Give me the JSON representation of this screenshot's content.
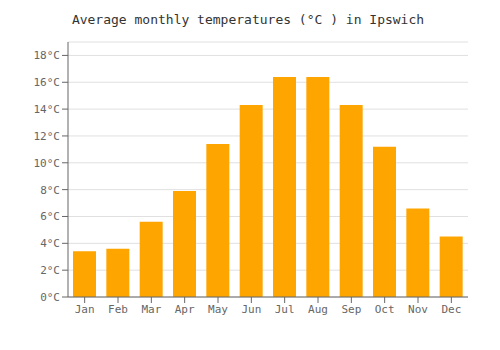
{
  "chart_data": {
    "type": "bar",
    "title": "Average monthly temperatures (°C ) in Ipswich",
    "categories": [
      "Jan",
      "Feb",
      "Mar",
      "Apr",
      "May",
      "Jun",
      "Jul",
      "Aug",
      "Sep",
      "Oct",
      "Nov",
      "Dec"
    ],
    "values": [
      3.4,
      3.6,
      5.6,
      7.9,
      11.4,
      14.3,
      16.4,
      16.4,
      14.3,
      11.2,
      6.6,
      4.5
    ],
    "color": "#FFA500",
    "ylim": [
      0,
      19
    ],
    "yticks": [
      {
        "value": 0,
        "label": "0°C"
      },
      {
        "value": 2,
        "label": "2°C"
      },
      {
        "value": 4,
        "label": "4°C"
      },
      {
        "value": 6,
        "label": "6°C"
      },
      {
        "value": 8,
        "label": "8°C"
      },
      {
        "value": 10,
        "label": "10°C"
      },
      {
        "value": 12,
        "label": "12°C"
      },
      {
        "value": 14,
        "label": "14°C"
      },
      {
        "value": 16,
        "label": "16°C"
      },
      {
        "value": 18,
        "label": "18°C"
      }
    ],
    "grid": true
  }
}
